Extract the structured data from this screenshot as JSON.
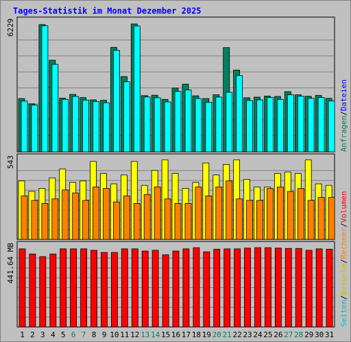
{
  "title": "Tages-Statistik im Monat Dezember 2025",
  "colors": {
    "background": "#c0c0c0",
    "panel": "#c0c0c0",
    "grid": "#808080",
    "title": "#0000ff",
    "anfragen": "#008060",
    "dateien": "#00ffff",
    "seiten": "#ffff00",
    "besuche": "#ff8000",
    "rechner": "#ff0000",
    "volumen": "#ff0000",
    "weekend_label": "#008060",
    "weekday_label": "#000000",
    "separator": "#000000"
  },
  "right_axis_labels": {
    "top": [
      {
        "text": "Anfragen",
        "color": "#008060"
      },
      {
        "text": "/",
        "color": "#000000"
      },
      {
        "text": "Dateien",
        "color": "#0000ff"
      }
    ],
    "middle": [
      {
        "text": "Seiten",
        "color": "#00c0c0"
      },
      {
        "text": "/",
        "color": "#000000"
      },
      {
        "text": "Besuche",
        "color": "#c0c000"
      },
      {
        "text": "/",
        "color": "#000000"
      },
      {
        "text": "Rechner",
        "color": "#ff8000"
      },
      {
        "text": "/",
        "color": "#000000"
      },
      {
        "text": "Volumen",
        "color": "#ff0000"
      }
    ]
  },
  "chart_data": [
    {
      "type": "bar",
      "panel": "top",
      "ymax_label": "6229",
      "ylim": [
        0,
        6229
      ],
      "categories": [
        "1",
        "2",
        "3",
        "4",
        "5",
        "6",
        "7",
        "8",
        "9",
        "10",
        "11",
        "12",
        "13",
        "14",
        "15",
        "16",
        "17",
        "18",
        "19",
        "20",
        "21",
        "22",
        "23",
        "24",
        "25",
        "26",
        "27",
        "28",
        "29",
        "30",
        "31"
      ],
      "weekend_days": [
        "6",
        "7",
        "13",
        "14",
        "20",
        "21",
        "27",
        "28"
      ],
      "series": [
        {
          "name": "Anfragen",
          "values": [
            2540,
            2290,
            6070,
            4370,
            2560,
            2740,
            2590,
            2480,
            2460,
            4980,
            3590,
            6100,
            2680,
            2700,
            2500,
            3040,
            3230,
            2670,
            2540,
            2720,
            4970,
            3900,
            2580,
            2610,
            2660,
            2640,
            2870,
            2720,
            2650,
            2690,
            2550
          ]
        },
        {
          "name": "Dateien",
          "values": [
            2420,
            2230,
            6010,
            4170,
            2500,
            2640,
            2470,
            2400,
            2340,
            4840,
            3340,
            6000,
            2620,
            2580,
            2380,
            2880,
            2950,
            2540,
            2360,
            2610,
            2840,
            3640,
            2450,
            2480,
            2590,
            2500,
            2720,
            2650,
            2550,
            2590,
            2430
          ]
        }
      ]
    },
    {
      "type": "bar",
      "panel": "middle",
      "ymax_label": "543",
      "ylim": [
        0,
        543
      ],
      "categories": [
        "1",
        "2",
        "3",
        "4",
        "5",
        "6",
        "7",
        "8",
        "9",
        "10",
        "11",
        "12",
        "13",
        "14",
        "15",
        "16",
        "17",
        "18",
        "19",
        "20",
        "21",
        "22",
        "23",
        "24",
        "25",
        "26",
        "27",
        "28",
        "29",
        "30",
        "31"
      ],
      "series": [
        {
          "name": "Seiten",
          "values": [
            390,
            320,
            340,
            410,
            470,
            380,
            390,
            520,
            440,
            370,
            430,
            520,
            360,
            460,
            530,
            440,
            340,
            380,
            510,
            430,
            500,
            530,
            400,
            350,
            350,
            440,
            450,
            440,
            530,
            370,
            360
          ]
        },
        {
          "name": "Besuche",
          "values": [
            290,
            260,
            240,
            270,
            330,
            310,
            260,
            350,
            340,
            250,
            290,
            240,
            300,
            350,
            270,
            240,
            240,
            350,
            290,
            350,
            390,
            270,
            260,
            260,
            340,
            350,
            320,
            340,
            260,
            280,
            280
          ]
        }
      ]
    },
    {
      "type": "bar",
      "panel": "bottom",
      "ymax_label": "441.64 MB",
      "ylim": [
        0,
        441.64
      ],
      "categories": [
        "1",
        "2",
        "3",
        "4",
        "5",
        "6",
        "7",
        "8",
        "9",
        "10",
        "11",
        "12",
        "13",
        "14",
        "15",
        "16",
        "17",
        "18",
        "19",
        "20",
        "21",
        "22",
        "23",
        "24",
        "25",
        "26",
        "27",
        "28",
        "29",
        "30",
        "31"
      ],
      "series": [
        {
          "name": "Volumen",
          "values": [
            424,
            396,
            382,
            396,
            424,
            424,
            424,
            416,
            404,
            404,
            424,
            424,
            412,
            416,
            392,
            412,
            424,
            430,
            408,
            422,
            424,
            424,
            428,
            430,
            430,
            428,
            426,
            426,
            416,
            424,
            422
          ]
        }
      ]
    }
  ]
}
